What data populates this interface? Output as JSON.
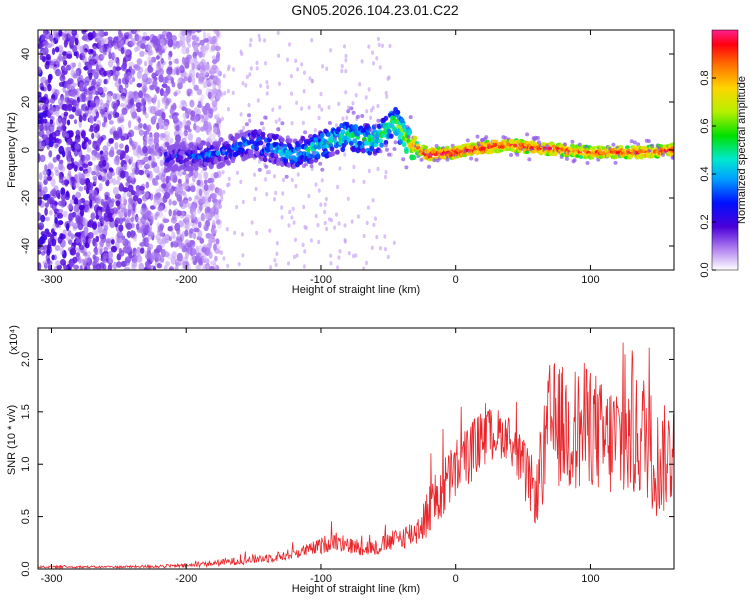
{
  "title": "GN05.2026.104.23.01.C22",
  "colors": {
    "signal_line": "#e8262b",
    "speckle": "#5a14d8",
    "background": "#ffffff",
    "axes": "#000000"
  },
  "chart_data": [
    {
      "type": "heatmap",
      "name": "spectrogram",
      "xlabel": "Height of straight line (km)",
      "ylabel": "Frequency (Hz)",
      "xlim": [
        -310,
        162
      ],
      "ylim": [
        -50,
        50
      ],
      "xticks": [
        -300,
        -200,
        -100,
        0,
        100
      ],
      "yticks": [
        -40,
        -20,
        0,
        20,
        40
      ],
      "colormap": "rainbow",
      "colorbar": {
        "label": "Normalized spectral amplitude",
        "range": [
          0,
          1
        ],
        "ticks": [
          "0.0",
          "0.2",
          "0.4",
          "0.6",
          "0.8"
        ],
        "tick_values": [
          0.0,
          0.2,
          0.4,
          0.6,
          0.8
        ]
      },
      "ridge": {
        "description_points_x": [
          -210,
          -180,
          -150,
          -120,
          -100,
          -80,
          -60,
          -45,
          -35,
          -20,
          0,
          20,
          40,
          60,
          80,
          100,
          120,
          140,
          160
        ],
        "description_points_freq": [
          -3,
          -2,
          3,
          -2,
          2,
          6,
          4,
          12,
          3,
          -2,
          -1,
          1,
          2,
          1,
          0,
          -1,
          -1,
          -1,
          0
        ],
        "description_points_amplitude": [
          0.25,
          0.3,
          0.35,
          0.4,
          0.45,
          0.5,
          0.5,
          0.55,
          0.7,
          0.95,
          0.95,
          0.95,
          0.9,
          0.9,
          0.9,
          0.85,
          0.9,
          0.9,
          0.9
        ]
      },
      "noise_region_x": [
        -310,
        -175
      ]
    },
    {
      "type": "line",
      "name": "snr",
      "xlabel": "Height of straight line (km)",
      "ylabel": "SNR (10 * v/v)",
      "y_multiplier": "(x10⁴)",
      "xlim": [
        -310,
        162
      ],
      "ylim": [
        0,
        2.3
      ],
      "xticks": [
        -300,
        -200,
        -100,
        0,
        100
      ],
      "yticks": [
        "0.0",
        "0.5",
        "1.0",
        "1.5",
        "2.0"
      ],
      "ytick_values": [
        0.0,
        0.5,
        1.0,
        1.5,
        2.0
      ],
      "series": [
        {
          "name": "SNR",
          "envelope_x": [
            -310,
            -250,
            -200,
            -160,
            -130,
            -110,
            -100,
            -90,
            -80,
            -60,
            -45,
            -30,
            -20,
            -10,
            0,
            10,
            20,
            30,
            40,
            50,
            60,
            70,
            80,
            90,
            100,
            110,
            120,
            130,
            140,
            150,
            160
          ],
          "envelope_y": [
            0.02,
            0.02,
            0.03,
            0.08,
            0.12,
            0.18,
            0.22,
            0.28,
            0.22,
            0.2,
            0.28,
            0.35,
            0.55,
            0.75,
            0.95,
            1.1,
            1.25,
            1.3,
            1.25,
            0.95,
            0.7,
            1.4,
            1.35,
            1.3,
            1.4,
            1.2,
            1.25,
            1.2,
            1.3,
            1.0,
            1.1
          ],
          "spread_y": [
            0.01,
            0.01,
            0.02,
            0.04,
            0.05,
            0.06,
            0.08,
            0.1,
            0.08,
            0.08,
            0.1,
            0.14,
            0.25,
            0.3,
            0.3,
            0.3,
            0.28,
            0.25,
            0.2,
            0.3,
            0.3,
            0.6,
            0.6,
            0.65,
            0.6,
            0.55,
            0.6,
            0.6,
            0.6,
            0.55,
            0.5
          ]
        }
      ]
    }
  ]
}
